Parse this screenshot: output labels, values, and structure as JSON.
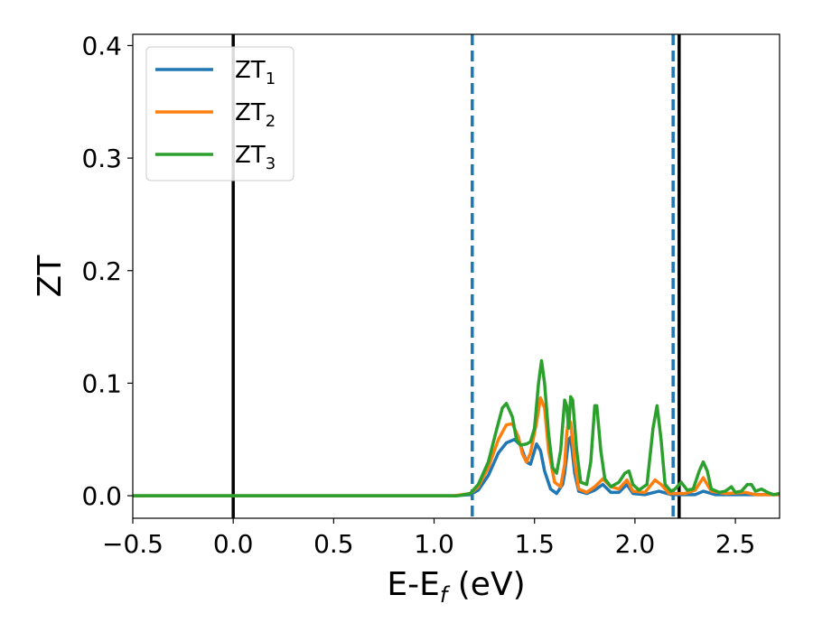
{
  "chart_data": {
    "type": "line",
    "title": "",
    "xlabel": {
      "main": "E-E",
      "sub": "f",
      "unit": " (eV)"
    },
    "ylabel": "ZT",
    "xlim": [
      -0.5,
      2.72
    ],
    "ylim": [
      -0.02,
      0.41
    ],
    "xticks": [
      -0.5,
      0.0,
      0.5,
      1.0,
      1.5,
      2.0,
      2.5
    ],
    "xtick_labels": [
      "−0.5",
      "0.0",
      "0.5",
      "1.0",
      "1.5",
      "2.0",
      "2.5"
    ],
    "yticks": [
      0.0,
      0.1,
      0.2,
      0.3,
      0.4
    ],
    "ytick_labels": [
      "0.0",
      "0.1",
      "0.2",
      "0.3",
      "0.4"
    ],
    "grid": false,
    "legend_position": "top-left",
    "vlines": [
      {
        "x": 0.0,
        "style": "solid",
        "color": "#000000"
      },
      {
        "x": 2.22,
        "style": "solid",
        "color": "#000000"
      },
      {
        "x": 1.19,
        "style": "dashed",
        "color": "#1f77b4"
      },
      {
        "x": 2.19,
        "style": "dashed",
        "color": "#1f77b4"
      }
    ],
    "series": [
      {
        "name": "ZT",
        "sub": "1",
        "color": "#1f77b4",
        "points": [
          [
            -0.5,
            0
          ],
          [
            1.1,
            0
          ],
          [
            1.18,
            0.001
          ],
          [
            1.22,
            0.005
          ],
          [
            1.27,
            0.018
          ],
          [
            1.32,
            0.038
          ],
          [
            1.36,
            0.047
          ],
          [
            1.4,
            0.05
          ],
          [
            1.43,
            0.045
          ],
          [
            1.46,
            0.03
          ],
          [
            1.48,
            0.028
          ],
          [
            1.5,
            0.04
          ],
          [
            1.51,
            0.046
          ],
          [
            1.53,
            0.04
          ],
          [
            1.55,
            0.022
          ],
          [
            1.58,
            0.006
          ],
          [
            1.61,
            0.002
          ],
          [
            1.64,
            0.01
          ],
          [
            1.65,
            0.02
          ],
          [
            1.67,
            0.05
          ],
          [
            1.68,
            0.052
          ],
          [
            1.7,
            0.02
          ],
          [
            1.72,
            0.004
          ],
          [
            1.76,
            0.002
          ],
          [
            1.8,
            0.005
          ],
          [
            1.84,
            0.01
          ],
          [
            1.88,
            0.003
          ],
          [
            1.92,
            0.003
          ],
          [
            1.96,
            0.01
          ],
          [
            1.99,
            0.002
          ],
          [
            2.05,
            0.001
          ],
          [
            2.12,
            0.004
          ],
          [
            2.18,
            0.001
          ],
          [
            2.3,
            0.001
          ],
          [
            2.34,
            0.004
          ],
          [
            2.4,
            0.001
          ],
          [
            2.72,
            0.001
          ]
        ]
      },
      {
        "name": "ZT",
        "sub": "2",
        "color": "#ff7f0e",
        "points": [
          [
            -0.5,
            0
          ],
          [
            1.1,
            0
          ],
          [
            1.18,
            0.002
          ],
          [
            1.22,
            0.008
          ],
          [
            1.27,
            0.025
          ],
          [
            1.32,
            0.05
          ],
          [
            1.36,
            0.063
          ],
          [
            1.39,
            0.064
          ],
          [
            1.42,
            0.052
          ],
          [
            1.44,
            0.037
          ],
          [
            1.46,
            0.03
          ],
          [
            1.48,
            0.038
          ],
          [
            1.51,
            0.065
          ],
          [
            1.53,
            0.087
          ],
          [
            1.55,
            0.078
          ],
          [
            1.57,
            0.04
          ],
          [
            1.6,
            0.012
          ],
          [
            1.63,
            0.008
          ],
          [
            1.65,
            0.028
          ],
          [
            1.66,
            0.055
          ],
          [
            1.67,
            0.068
          ],
          [
            1.68,
            0.065
          ],
          [
            1.7,
            0.03
          ],
          [
            1.72,
            0.006
          ],
          [
            1.76,
            0.003
          ],
          [
            1.8,
            0.008
          ],
          [
            1.84,
            0.015
          ],
          [
            1.88,
            0.008
          ],
          [
            1.92,
            0.006
          ],
          [
            1.96,
            0.014
          ],
          [
            1.99,
            0.004
          ],
          [
            2.05,
            0.003
          ],
          [
            2.1,
            0.014
          ],
          [
            2.13,
            0.01
          ],
          [
            2.17,
            0.002
          ],
          [
            2.25,
            0.002
          ],
          [
            2.3,
            0.005
          ],
          [
            2.34,
            0.016
          ],
          [
            2.38,
            0.004
          ],
          [
            2.45,
            0.002
          ],
          [
            2.55,
            0.003
          ],
          [
            2.6,
            0.001
          ],
          [
            2.72,
            0.001
          ]
        ]
      },
      {
        "name": "ZT",
        "sub": "3",
        "color": "#2ca02c",
        "points": [
          [
            -0.5,
            0
          ],
          [
            1.12,
            0
          ],
          [
            1.18,
            0.002
          ],
          [
            1.22,
            0.01
          ],
          [
            1.27,
            0.03
          ],
          [
            1.31,
            0.058
          ],
          [
            1.34,
            0.078
          ],
          [
            1.36,
            0.082
          ],
          [
            1.39,
            0.07
          ],
          [
            1.41,
            0.05
          ],
          [
            1.43,
            0.045
          ],
          [
            1.46,
            0.046
          ],
          [
            1.48,
            0.048
          ],
          [
            1.5,
            0.06
          ],
          [
            1.52,
            0.1
          ],
          [
            1.535,
            0.12
          ],
          [
            1.55,
            0.1
          ],
          [
            1.57,
            0.055
          ],
          [
            1.59,
            0.025
          ],
          [
            1.61,
            0.02
          ],
          [
            1.63,
            0.04
          ],
          [
            1.65,
            0.085
          ],
          [
            1.66,
            0.08
          ],
          [
            1.67,
            0.06
          ],
          [
            1.68,
            0.088
          ],
          [
            1.69,
            0.085
          ],
          [
            1.71,
            0.04
          ],
          [
            1.73,
            0.012
          ],
          [
            1.76,
            0.01
          ],
          [
            1.78,
            0.03
          ],
          [
            1.8,
            0.08
          ],
          [
            1.81,
            0.08
          ],
          [
            1.83,
            0.04
          ],
          [
            1.85,
            0.015
          ],
          [
            1.88,
            0.008
          ],
          [
            1.92,
            0.012
          ],
          [
            1.95,
            0.02
          ],
          [
            1.97,
            0.022
          ],
          [
            1.99,
            0.01
          ],
          [
            2.02,
            0.005
          ],
          [
            2.06,
            0.01
          ],
          [
            2.09,
            0.06
          ],
          [
            2.11,
            0.08
          ],
          [
            2.13,
            0.05
          ],
          [
            2.15,
            0.01
          ],
          [
            2.18,
            0.004
          ],
          [
            2.2,
            0.006
          ],
          [
            2.23,
            0.012
          ],
          [
            2.26,
            0.005
          ],
          [
            2.29,
            0.006
          ],
          [
            2.32,
            0.022
          ],
          [
            2.34,
            0.03
          ],
          [
            2.36,
            0.022
          ],
          [
            2.38,
            0.006
          ],
          [
            2.42,
            0.003
          ],
          [
            2.45,
            0.004
          ],
          [
            2.48,
            0.008
          ],
          [
            2.5,
            0.003
          ],
          [
            2.53,
            0.004
          ],
          [
            2.56,
            0.01
          ],
          [
            2.58,
            0.01
          ],
          [
            2.6,
            0.004
          ],
          [
            2.63,
            0.006
          ],
          [
            2.66,
            0.003
          ],
          [
            2.69,
            0.001
          ],
          [
            2.72,
            0.002
          ]
        ]
      }
    ]
  }
}
